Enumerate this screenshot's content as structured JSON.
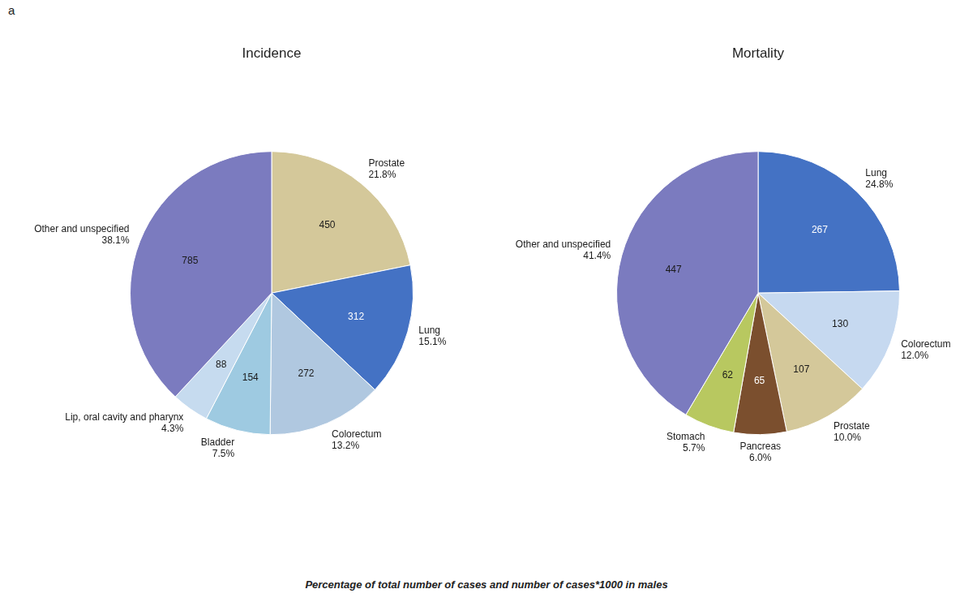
{
  "chart_data": [
    {
      "type": "pie",
      "title": "Incidence",
      "categories": [
        "Prostate",
        "Lung",
        "Colorectum",
        "Bladder",
        "Lip, oral cavity and pharynx",
        "Other and unspecified"
      ],
      "values": [
        450,
        312,
        272,
        154,
        88,
        785
      ],
      "shares": [
        {
          "value": 21.8,
          "label": "21.8%"
        },
        {
          "value": 15.1,
          "label": "15.1%"
        },
        {
          "value": 13.2,
          "label": "13.2%"
        },
        {
          "value": 7.5,
          "label": "7.5%"
        },
        {
          "value": 4.3,
          "label": "4.3%"
        },
        {
          "value": 38.1,
          "label": "38.1%"
        }
      ],
      "colors": [
        "#d4c89a",
        "#4472c4",
        "#b0c8e0",
        "#9ecae1",
        "#c6dbef",
        "#7b7bbf"
      ],
      "data_labels": true,
      "legend": false,
      "annotations": [
        "a"
      ]
    },
    {
      "type": "pie",
      "title": "Mortality",
      "categories": [
        "Lung",
        "Colorectum",
        "Prostate",
        "Pancreas",
        "Stomach",
        "Other and unspecified"
      ],
      "values": [
        267,
        130,
        107,
        65,
        62,
        447
      ],
      "shares": [
        {
          "value": 24.8,
          "label": "24.8%"
        },
        {
          "value": 12.0,
          "label": "12.0%"
        },
        {
          "value": 10.0,
          "label": "10.0%"
        },
        {
          "value": 6.0,
          "label": "6.0%"
        },
        {
          "value": 5.7,
          "label": "5.7%"
        },
        {
          "value": 41.4,
          "label": "41.4%"
        }
      ],
      "colors": [
        "#4472c4",
        "#c6d9f0",
        "#d4c89a",
        "#7b4f2e",
        "#b8c860",
        "#7b7bbf"
      ],
      "data_labels": true,
      "legend": false,
      "annotations": [
        "Percentage of total number of cases and number of cases*1000 in males"
      ]
    }
  ]
}
